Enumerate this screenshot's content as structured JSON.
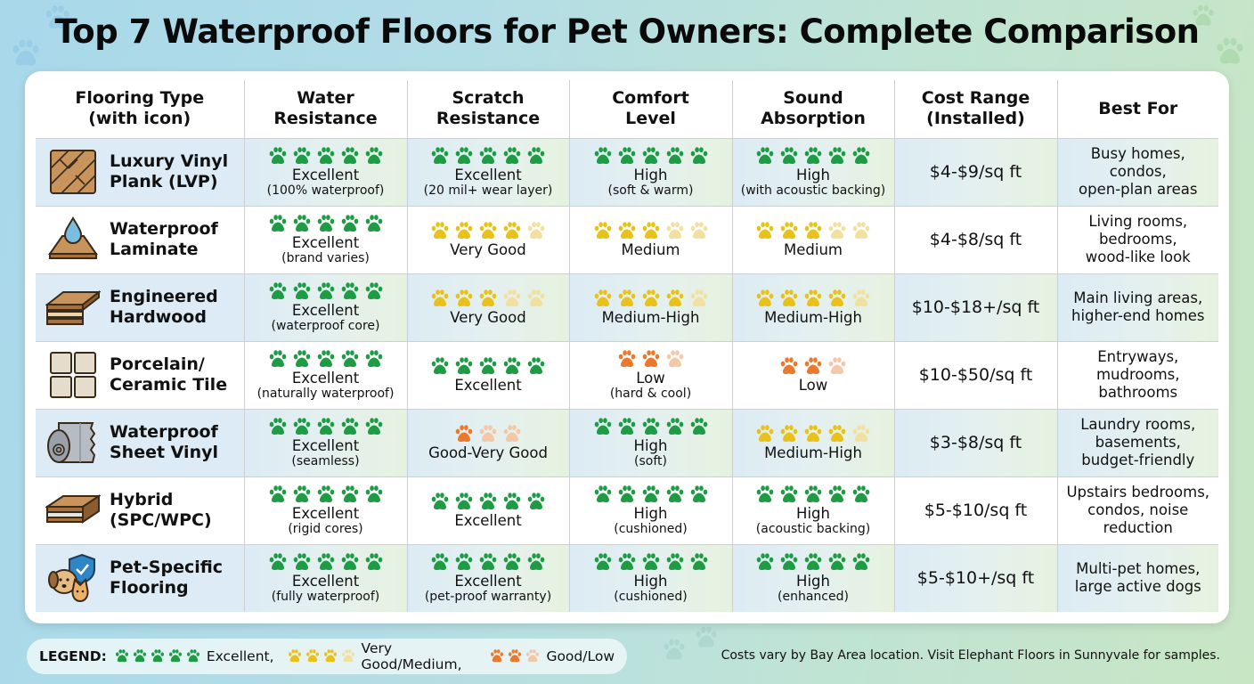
{
  "title": "Top 7 Waterproof Floors for Pet Owners: Complete Comparison",
  "colors": {
    "excellent": "#1f9a45",
    "medium": "#e8c21a",
    "low": "#e97a2d",
    "excellent_faded": "#8fd0a3",
    "medium_faded": "#f1e0a0",
    "low_faded": "#f2c8a8"
  },
  "table": {
    "headers": [
      "Flooring Type\n(with icon)",
      "Water\nResistance",
      "Scratch\nResistance",
      "Comfort\nLevel",
      "Sound\nAbsorption",
      "Cost Range\n(Installed)",
      "Best For"
    ],
    "rows": [
      {
        "icon": "lvp-plank-icon",
        "name": "Luxury Vinyl\nPlank (LVP)",
        "water": {
          "level": "excellent",
          "filled": 5,
          "total": 5,
          "label": "Excellent",
          "sub": "(100% waterproof)"
        },
        "scratch": {
          "level": "excellent",
          "filled": 5,
          "total": 5,
          "label": "Excellent",
          "sub": "(20 mil+ wear layer)"
        },
        "comfort": {
          "level": "excellent",
          "filled": 5,
          "total": 5,
          "label": "High",
          "sub": "(soft & warm)"
        },
        "sound": {
          "level": "excellent",
          "filled": 5,
          "total": 5,
          "label": "High",
          "sub": "(with acoustic backing)"
        },
        "cost": "$4-$9/sq ft",
        "best_for": "Busy homes, condos,\nopen-plan areas"
      },
      {
        "icon": "water-drop-laminate-icon",
        "name": "Waterproof\nLaminate",
        "water": {
          "level": "excellent",
          "filled": 5,
          "total": 5,
          "label": "Excellent",
          "sub": "(brand varies)"
        },
        "scratch": {
          "level": "medium",
          "filled": 4,
          "total": 5,
          "label": "Very Good",
          "sub": ""
        },
        "comfort": {
          "level": "medium",
          "filled": 3,
          "total": 5,
          "label": "Medium",
          "sub": ""
        },
        "sound": {
          "level": "medium",
          "filled": 3,
          "total": 5,
          "label": "Medium",
          "sub": ""
        },
        "cost": "$4-$8/sq ft",
        "best_for": "Living rooms,\nbedrooms,\nwood-like look"
      },
      {
        "icon": "engineered-layers-icon",
        "name": "Engineered\nHardwood",
        "water": {
          "level": "excellent",
          "filled": 5,
          "total": 5,
          "label": "Excellent",
          "sub": "(waterproof core)"
        },
        "scratch": {
          "level": "medium",
          "filled": 3,
          "total": 5,
          "label": "Very Good",
          "sub": ""
        },
        "comfort": {
          "level": "medium",
          "filled": 4,
          "total": 5,
          "label": "Medium-High",
          "sub": ""
        },
        "sound": {
          "level": "medium",
          "filled": 4,
          "total": 5,
          "label": "Medium-High",
          "sub": ""
        },
        "cost": "$10-$18+/sq ft",
        "best_for": "Main living areas,\nhigher-end homes"
      },
      {
        "icon": "tile-grid-icon",
        "name": "Porcelain/\nCeramic Tile",
        "water": {
          "level": "excellent",
          "filled": 5,
          "total": 5,
          "label": "Excellent",
          "sub": "(naturally waterproof)"
        },
        "scratch": {
          "level": "excellent",
          "filled": 5,
          "total": 5,
          "label": "Excellent",
          "sub": ""
        },
        "comfort": {
          "level": "low",
          "filled": 2,
          "total": 3,
          "label": "Low",
          "sub": "(hard & cool)"
        },
        "sound": {
          "level": "low",
          "filled": 2,
          "total": 3,
          "label": "Low",
          "sub": ""
        },
        "cost": "$10-$50/sq ft",
        "best_for": "Entryways,\nmudrooms,\nbathrooms"
      },
      {
        "icon": "vinyl-roll-icon",
        "name": "Waterproof\nSheet Vinyl",
        "water": {
          "level": "excellent",
          "filled": 5,
          "total": 5,
          "label": "Excellent",
          "sub": "(seamless)"
        },
        "scratch": {
          "level": "low",
          "filled": 1,
          "total": 3,
          "label": "Good-Very Good",
          "sub": ""
        },
        "comfort": {
          "level": "excellent",
          "filled": 5,
          "total": 5,
          "label": "High",
          "sub": "(soft)"
        },
        "sound": {
          "level": "medium",
          "filled": 4,
          "total": 5,
          "label": "Medium-High",
          "sub": ""
        },
        "cost": "$3-$8/sq ft",
        "best_for": "Laundry rooms,\nbasements,\nbudget-friendly"
      },
      {
        "icon": "hybrid-plank-icon",
        "name": "Hybrid\n(SPC/WPC)",
        "water": {
          "level": "excellent",
          "filled": 5,
          "total": 5,
          "label": "Excellent",
          "sub": "(rigid cores)"
        },
        "scratch": {
          "level": "excellent",
          "filled": 5,
          "total": 5,
          "label": "Excellent",
          "sub": ""
        },
        "comfort": {
          "level": "excellent",
          "filled": 5,
          "total": 5,
          "label": "High",
          "sub": "(cushioned)"
        },
        "sound": {
          "level": "excellent",
          "filled": 5,
          "total": 5,
          "label": "High",
          "sub": "(acoustic backing)"
        },
        "cost": "$5-$10/sq ft",
        "best_for": "Upstairs bedrooms,\ncondos, noise\nreduction"
      },
      {
        "icon": "pets-shield-icon",
        "name": "Pet-Specific\nFlooring",
        "water": {
          "level": "excellent",
          "filled": 5,
          "total": 5,
          "label": "Excellent",
          "sub": "(fully waterproof)"
        },
        "scratch": {
          "level": "excellent",
          "filled": 5,
          "total": 5,
          "label": "Excellent",
          "sub": "(pet-proof warranty)"
        },
        "comfort": {
          "level": "excellent",
          "filled": 5,
          "total": 5,
          "label": "High",
          "sub": "(cushioned)"
        },
        "sound": {
          "level": "excellent",
          "filled": 5,
          "total": 5,
          "label": "High",
          "sub": "(enhanced)"
        },
        "cost": "$5-$10+/sq ft",
        "best_for": "Multi-pet homes,\nlarge active dogs"
      }
    ]
  },
  "legend": {
    "title": "LEGEND:",
    "items": [
      {
        "level": "excellent",
        "filled": 5,
        "total": 5,
        "label": "Excellent,"
      },
      {
        "level": "medium",
        "filled": 3,
        "total": 4,
        "label": "Very Good/Medium,"
      },
      {
        "level": "low",
        "filled": 2,
        "total": 3,
        "label": "Good/Low"
      }
    ]
  },
  "footnote": "Costs vary by Bay Area location. Visit Elephant Floors in Sunnyvale for samples."
}
